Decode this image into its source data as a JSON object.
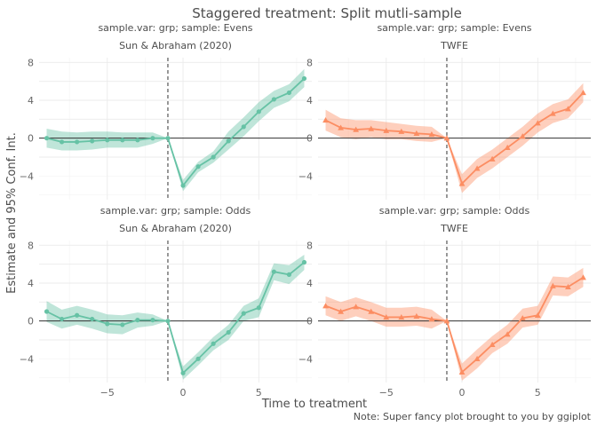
{
  "title": "Staggered treatment: Split mutli-sample",
  "ylabel": "Estimate and 95% Conf. Int.",
  "xlabel": "Time to treatment",
  "caption": "Note: Super fancy plot brought to you by ggiplot",
  "colors": {
    "sunab": "#66c2a5",
    "twfe": "#fc8d62",
    "panel_grid": "#ebebeb",
    "text": "#4d4d4d",
    "zero_line": "#333333"
  },
  "chart_data": [
    {
      "type": "line",
      "strip": "sample.var: grp; sample: Evens",
      "subtitle": "Sun & Abraham (2020)",
      "marker": "circle",
      "color": "#66c2a5",
      "x": [
        -9,
        -8,
        -7,
        -6,
        -5,
        -4,
        -3,
        -2,
        -1,
        0,
        1,
        2,
        3,
        4,
        5,
        6,
        7,
        8
      ],
      "y": [
        0,
        -0.4,
        -0.4,
        -0.3,
        -0.2,
        -0.2,
        -0.2,
        0,
        0,
        -5,
        -3,
        -2,
        -0.3,
        1.2,
        2.8,
        4.1,
        4.8,
        6.3
      ],
      "ci_low": [
        -1,
        -1.3,
        -1.3,
        -1.2,
        -1,
        -1,
        -1,
        -0.6,
        0,
        -5.6,
        -3.6,
        -2.6,
        -1.2,
        0.2,
        1.8,
        3.2,
        3.9,
        5.4
      ],
      "ci_high": [
        1,
        0.7,
        0.6,
        0.7,
        0.7,
        0.6,
        0.6,
        0.6,
        0,
        -4.4,
        -2.5,
        -1.4,
        0.7,
        2.2,
        3.8,
        5,
        5.7,
        7.3
      ],
      "xlim": [
        -9.5,
        8.5
      ],
      "ylim": [
        -6.5,
        8.5
      ],
      "xticks": [
        -5,
        0,
        5
      ],
      "yticks": [
        -4,
        0,
        4,
        8
      ],
      "vline": -1,
      "hline": 0
    },
    {
      "type": "line",
      "strip": "sample.var: grp; sample: Evens",
      "subtitle": "TWFE",
      "marker": "triangle",
      "color": "#fc8d62",
      "x": [
        -9,
        -8,
        -7,
        -6,
        -5,
        -4,
        -3,
        -2,
        -1,
        0,
        1,
        2,
        3,
        4,
        5,
        6,
        7,
        8
      ],
      "y": [
        1.9,
        1.1,
        0.9,
        1,
        0.8,
        0.7,
        0.5,
        0.4,
        0,
        -4.8,
        -3.2,
        -2.2,
        -1,
        0.2,
        1.6,
        2.6,
        3.1,
        4.8
      ],
      "ci_low": [
        0.8,
        0.1,
        -0.1,
        0.1,
        -0.1,
        -0.1,
        -0.3,
        -0.4,
        0,
        -5.8,
        -4.2,
        -3.2,
        -2,
        -0.8,
        0.6,
        1.6,
        2.1,
        3.8
      ],
      "ci_high": [
        3,
        2.1,
        1.9,
        1.9,
        1.7,
        1.5,
        1.3,
        1.2,
        0,
        -3.8,
        -2.2,
        -1.2,
        0,
        1.2,
        2.6,
        3.6,
        4.1,
        5.8
      ],
      "xlim": [
        -9.5,
        8.5
      ],
      "ylim": [
        -6.5,
        8.5
      ],
      "xticks": [
        -5,
        0,
        5
      ],
      "yticks": [
        -4,
        0,
        4,
        8
      ],
      "vline": -1,
      "hline": 0
    },
    {
      "type": "line",
      "strip": "sample.var: grp; sample: Odds",
      "subtitle": "Sun & Abraham (2020)",
      "marker": "circle",
      "color": "#66c2a5",
      "x": [
        -9,
        -8,
        -7,
        -6,
        -5,
        -4,
        -3,
        -2,
        -1,
        0,
        1,
        2,
        3,
        4,
        5,
        6,
        7,
        8
      ],
      "y": [
        1,
        0.2,
        0.6,
        0.2,
        -0.3,
        -0.4,
        0.1,
        0.1,
        0,
        -5.5,
        -4,
        -2.4,
        -1.2,
        0.8,
        1.4,
        5.2,
        4.9,
        6.2
      ],
      "ci_low": [
        -0.1,
        -0.8,
        -0.4,
        -0.8,
        -1.3,
        -1.4,
        -0.7,
        -0.5,
        0,
        -6.2,
        -4.7,
        -3.1,
        -2,
        0,
        0.4,
        4.3,
        3.9,
        5.4
      ],
      "ci_high": [
        2.1,
        1.2,
        1.6,
        1.2,
        0.7,
        0.6,
        0.9,
        0.7,
        0,
        -4.8,
        -3.3,
        -1.7,
        -0.4,
        1.6,
        2.4,
        6.1,
        5.9,
        7
      ],
      "xlim": [
        -9.5,
        8.5
      ],
      "ylim": [
        -6.5,
        8.5
      ],
      "xticks": [
        -5,
        0,
        5
      ],
      "yticks": [
        -4,
        0,
        4,
        8
      ],
      "vline": -1,
      "hline": 0
    },
    {
      "type": "line",
      "strip": "sample.var: grp; sample: Odds",
      "subtitle": "TWFE",
      "marker": "triangle",
      "color": "#fc8d62",
      "x": [
        -9,
        -8,
        -7,
        -6,
        -5,
        -4,
        -3,
        -2,
        -1,
        0,
        1,
        2,
        3,
        4,
        5,
        6,
        7,
        8
      ],
      "y": [
        1.6,
        1,
        1.5,
        1,
        0.4,
        0.4,
        0.5,
        0.2,
        0,
        -5.4,
        -4,
        -2.5,
        -1.4,
        0.3,
        0.6,
        3.7,
        3.6,
        4.6
      ],
      "ci_low": [
        0.6,
        0,
        0.5,
        0,
        -0.6,
        -0.6,
        -0.5,
        -0.8,
        0,
        -6.3,
        -5,
        -3.4,
        -2.4,
        -0.7,
        -0.4,
        2.7,
        2.6,
        3.6
      ],
      "ci_high": [
        2.6,
        2,
        2.5,
        2,
        1.4,
        1.4,
        1.5,
        1.2,
        0,
        -4.5,
        -3,
        -1.6,
        -0.4,
        1.3,
        1.6,
        4.7,
        4.6,
        5.6
      ],
      "xlim": [
        -9.5,
        8.5
      ],
      "ylim": [
        -6.5,
        8.5
      ],
      "xticks": [
        -5,
        0,
        5
      ],
      "yticks": [
        -4,
        0,
        4,
        8
      ],
      "vline": -1,
      "hline": 0
    }
  ]
}
